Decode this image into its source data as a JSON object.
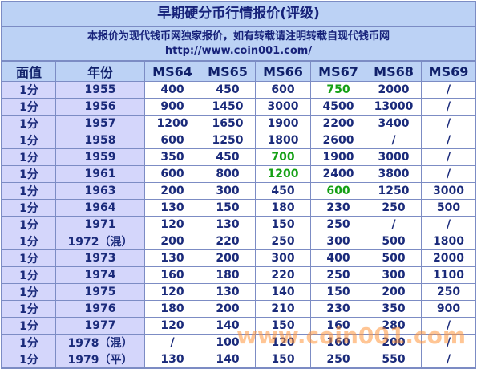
{
  "title": "早期硬分币行情报价(评级)",
  "notice_line1": "本报价为现代钱币网独家报价，如有转载请注明转载自现代钱币网",
  "notice_line2": "http://www.coin001.com/",
  "columns": [
    "面值",
    "年份",
    "MS64",
    "MS65",
    "MS66",
    "MS67",
    "MS68",
    "MS69"
  ],
  "rows": [
    [
      "1分",
      "1955",
      "400",
      "450",
      "600",
      "750",
      "2000",
      "/"
    ],
    [
      "1分",
      "1956",
      "900",
      "1450",
      "3000",
      "4500",
      "13000",
      "/"
    ],
    [
      "1分",
      "1957",
      "1200",
      "1650",
      "1900",
      "2200",
      "3400",
      "/"
    ],
    [
      "1分",
      "1958",
      "600",
      "1250",
      "1800",
      "2600",
      "/",
      "/"
    ],
    [
      "1分",
      "1959",
      "350",
      "450",
      "700",
      "1900",
      "3000",
      "/"
    ],
    [
      "1分",
      "1961",
      "600",
      "800",
      "1200",
      "2400",
      "3800",
      "/"
    ],
    [
      "1分",
      "1963",
      "200",
      "300",
      "450",
      "600",
      "1250",
      "3000"
    ],
    [
      "1分",
      "1964",
      "130",
      "150",
      "180",
      "230",
      "250",
      "500"
    ],
    [
      "1分",
      "1971",
      "120",
      "130",
      "150",
      "250",
      "/",
      "/"
    ],
    [
      "1分",
      "1972（混）",
      "200",
      "220",
      "250",
      "300",
      "500",
      "1800"
    ],
    [
      "1分",
      "1973",
      "130",
      "200",
      "300",
      "400",
      "500",
      "2000"
    ],
    [
      "1分",
      "1974",
      "160",
      "180",
      "220",
      "250",
      "300",
      "1100"
    ],
    [
      "1分",
      "1975",
      "120",
      "130",
      "140",
      "150",
      "200",
      "250"
    ],
    [
      "1分",
      "1976",
      "180",
      "200",
      "210",
      "230",
      "350",
      "900"
    ],
    [
      "1分",
      "1977",
      "120",
      "140",
      "150",
      "160",
      "280",
      "/"
    ],
    [
      "1分",
      "1978（混）",
      "/",
      "100",
      "120",
      "160",
      "200",
      "/"
    ],
    [
      "1分",
      "1979（平）",
      "130",
      "140",
      "150",
      "250",
      "550",
      "/"
    ]
  ],
  "highlights": [
    [
      0,
      5
    ],
    [
      4,
      4
    ],
    [
      5,
      4
    ],
    [
      6,
      5
    ]
  ],
  "highlight_color": "#14a014",
  "watermark": "www.coin001.com"
}
